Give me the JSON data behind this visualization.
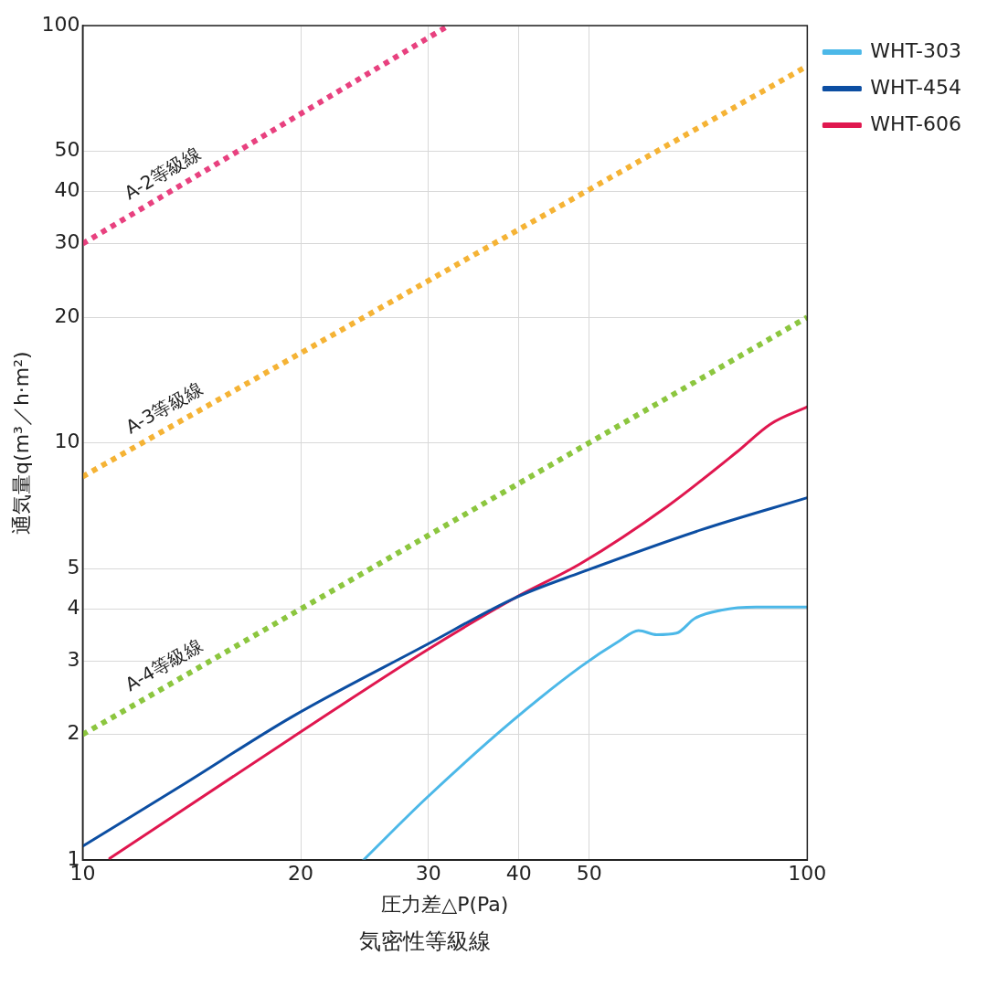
{
  "chart_data": {
    "type": "line",
    "xlabel": "圧力差△P(Pa)",
    "ylabel": "通気量q(m³／h·m²)",
    "annotations": [
      "気密性等級線"
    ],
    "log": "xy",
    "grid": true,
    "legend": "right",
    "marker": "none",
    "xlim": [
      10,
      100
    ],
    "xticks": [
      10,
      20,
      30,
      40,
      50,
      100
    ],
    "ylim": [
      1,
      100
    ],
    "yticks": [
      1,
      2,
      3,
      4,
      5,
      10,
      20,
      30,
      40,
      50,
      100
    ],
    "series": [
      {
        "name": "A-2等級線",
        "color": "#e8417f",
        "line_style": "dotted",
        "x": [
          10,
          32
        ],
        "values": [
          30,
          100
        ]
      },
      {
        "name": "A-3等級線",
        "color": "#f5b335",
        "line_style": "dotted",
        "x": [
          10,
          100
        ],
        "values": [
          8.3,
          80
        ]
      },
      {
        "name": "A-4等級線",
        "color": "#8cc63f",
        "line_style": "dotted",
        "x": [
          10,
          100
        ],
        "values": [
          2,
          20
        ]
      },
      {
        "name": "WHT-303",
        "color": "#4cb8e8",
        "line_style": "solid",
        "x": [
          24.4,
          29.7,
          39.1,
          48.7,
          55,
          58.5,
          62,
          66,
          70,
          76,
          85,
          100
        ],
        "values": [
          1.0,
          1.4,
          2.15,
          2.91,
          3.35,
          3.55,
          3.47,
          3.5,
          3.8,
          3.97,
          4.04,
          4.04
        ]
      },
      {
        "name": "WHT-454",
        "color": "#0c4ea2",
        "line_style": "solid",
        "x": [
          10,
          13.7,
          19.4,
          29.7,
          39.5,
          48.7,
          71.6,
          100
        ],
        "values": [
          1.08,
          1.51,
          2.2,
          3.27,
          4.25,
          4.89,
          6.2,
          7.39
        ]
      },
      {
        "name": "WHT-606",
        "color": "#e0174f",
        "line_style": "solid",
        "x": [
          10.9,
          19.4,
          29.7,
          39.5,
          48.7,
          64,
          79.9,
          89,
          100
        ],
        "values": [
          1.01,
          1.96,
          3.17,
          4.25,
          5.14,
          7.03,
          9.5,
          11.1,
          12.2
        ]
      }
    ]
  }
}
